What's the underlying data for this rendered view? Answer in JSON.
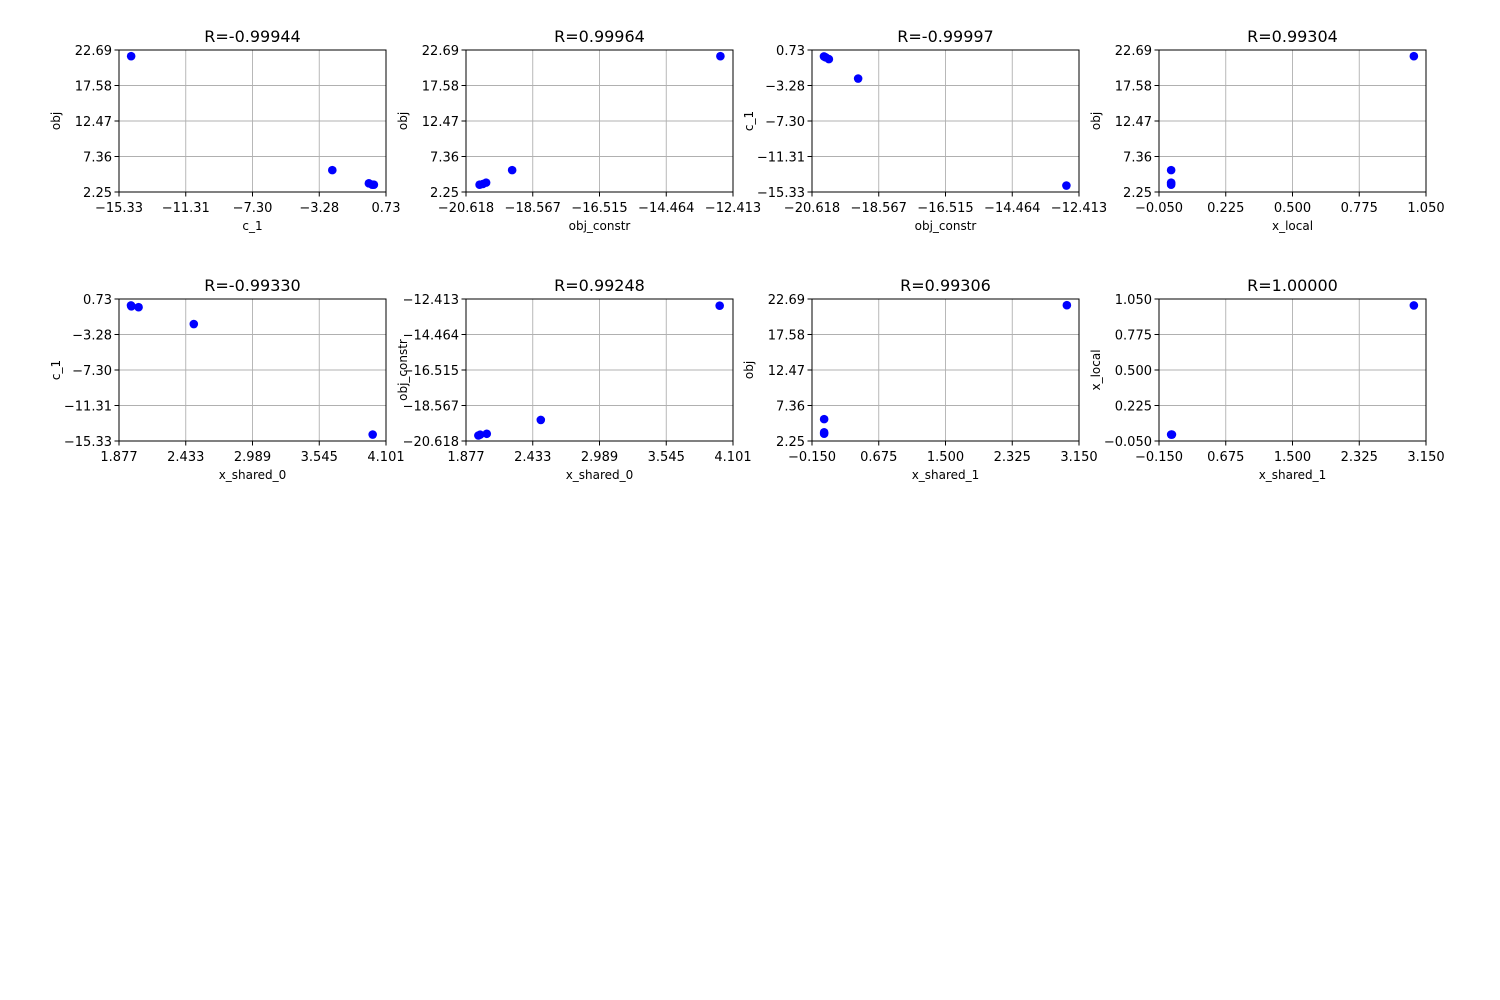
{
  "chart_data": [
    {
      "type": "scatter",
      "title": "R=-0.99944",
      "xlabel": "c_1",
      "ylabel": "obj",
      "xlim": [
        -15.33,
        0.73
      ],
      "ylim": [
        2.25,
        22.69
      ],
      "xticks": [
        "−15.33",
        "−11.31",
        "−7.30",
        "−3.28",
        "0.73"
      ],
      "yticks": [
        "2.25",
        "7.36",
        "12.47",
        "17.58",
        "22.69"
      ],
      "grid": true,
      "color": "#0000ff",
      "points": [
        [
          -14.6,
          21.8
        ],
        [
          -2.5,
          5.4
        ],
        [
          -0.3,
          3.5
        ],
        [
          -0.1,
          3.3
        ],
        [
          0.0,
          3.3
        ]
      ]
    },
    {
      "type": "scatter",
      "title": "R=0.99964",
      "xlabel": "obj_constr",
      "ylabel": "obj",
      "xlim": [
        -20.618,
        -12.413
      ],
      "ylim": [
        2.25,
        22.69
      ],
      "xticks": [
        "−20.618",
        "−18.567",
        "−16.515",
        "−14.464",
        "−12.413"
      ],
      "yticks": [
        "2.25",
        "7.36",
        "12.47",
        "17.58",
        "22.69"
      ],
      "grid": true,
      "color": "#0000ff",
      "points": [
        [
          -20.2,
          3.3
        ],
        [
          -20.1,
          3.4
        ],
        [
          -20.0,
          3.6
        ],
        [
          -19.2,
          5.4
        ],
        [
          -12.8,
          21.8
        ]
      ]
    },
    {
      "type": "scatter",
      "title": "R=-0.99997",
      "xlabel": "obj_constr",
      "ylabel": "c_1",
      "xlim": [
        -20.618,
        -12.413
      ],
      "ylim": [
        -15.33,
        0.73
      ],
      "xticks": [
        "−20.618",
        "−18.567",
        "−16.515",
        "−14.464",
        "−12.413"
      ],
      "yticks": [
        "−15.33",
        "−11.31",
        "−7.30",
        "−3.28",
        "0.73"
      ],
      "grid": true,
      "color": "#0000ff",
      "points": [
        [
          -20.25,
          0.0
        ],
        [
          -20.2,
          -0.1
        ],
        [
          -20.1,
          -0.3
        ],
        [
          -19.2,
          -2.5
        ],
        [
          -12.8,
          -14.6
        ]
      ]
    },
    {
      "type": "scatter",
      "title": "R=0.99304",
      "xlabel": "x_local",
      "ylabel": "obj",
      "xlim": [
        -0.05,
        1.05
      ],
      "ylim": [
        2.25,
        22.69
      ],
      "xticks": [
        "−0.050",
        "0.225",
        "0.500",
        "0.775",
        "1.050"
      ],
      "yticks": [
        "2.25",
        "7.36",
        "12.47",
        "17.58",
        "22.69"
      ],
      "grid": true,
      "color": "#0000ff",
      "points": [
        [
          0.0,
          3.3
        ],
        [
          0.0,
          3.5
        ],
        [
          0.0,
          3.6
        ],
        [
          0.0,
          5.4
        ],
        [
          1.0,
          21.8
        ]
      ]
    },
    {
      "type": "scatter",
      "title": "R=-0.99330",
      "xlabel": "x_shared_0",
      "ylabel": "c_1",
      "xlim": [
        1.877,
        4.101
      ],
      "ylim": [
        -15.33,
        0.73
      ],
      "xticks": [
        "1.877",
        "2.433",
        "2.989",
        "3.545",
        "4.101"
      ],
      "yticks": [
        "−15.33",
        "−11.31",
        "−7.30",
        "−3.28",
        "0.73"
      ],
      "grid": true,
      "color": "#0000ff",
      "points": [
        [
          1.977,
          0.0
        ],
        [
          1.98,
          -0.1
        ],
        [
          2.04,
          -0.2
        ],
        [
          2.5,
          -2.1
        ],
        [
          3.99,
          -14.6
        ]
      ]
    },
    {
      "type": "scatter",
      "title": "R=0.99248",
      "xlabel": "x_shared_0",
      "ylabel": "obj_constr",
      "xlim": [
        1.877,
        4.101
      ],
      "ylim": [
        -20.618,
        -12.413
      ],
      "xticks": [
        "1.877",
        "2.433",
        "2.989",
        "3.545",
        "4.101"
      ],
      "yticks": [
        "−20.618",
        "−18.567",
        "−16.515",
        "−14.464",
        "−12.413"
      ],
      "grid": true,
      "color": "#0000ff",
      "points": [
        [
          1.98,
          -20.3
        ],
        [
          1.995,
          -20.25
        ],
        [
          2.05,
          -20.2
        ],
        [
          2.5,
          -19.4
        ],
        [
          3.99,
          -12.8
        ]
      ]
    },
    {
      "type": "scatter",
      "title": "R=0.99306",
      "xlabel": "x_shared_1",
      "ylabel": "obj",
      "xlim": [
        -0.15,
        3.15
      ],
      "ylim": [
        2.25,
        22.69
      ],
      "xticks": [
        "−0.150",
        "0.675",
        "1.500",
        "2.325",
        "3.150"
      ],
      "yticks": [
        "2.25",
        "7.36",
        "12.47",
        "17.58",
        "22.69"
      ],
      "grid": true,
      "color": "#0000ff",
      "points": [
        [
          0.0,
          3.3
        ],
        [
          0.0,
          3.5
        ],
        [
          0.0,
          5.4
        ],
        [
          3.0,
          21.8
        ]
      ]
    },
    {
      "type": "scatter",
      "title": "R=1.00000",
      "xlabel": "x_shared_1",
      "ylabel": "x_local",
      "xlim": [
        -0.15,
        3.15
      ],
      "ylim": [
        -0.05,
        1.05
      ],
      "xticks": [
        "−0.150",
        "0.675",
        "1.500",
        "2.325",
        "3.150"
      ],
      "yticks": [
        "−0.050",
        "0.225",
        "0.500",
        "0.775",
        "1.050"
      ],
      "grid": true,
      "color": "#0000ff",
      "points": [
        [
          0.0,
          0.0
        ],
        [
          0.01,
          0.0
        ],
        [
          3.0,
          1.0
        ]
      ]
    }
  ]
}
